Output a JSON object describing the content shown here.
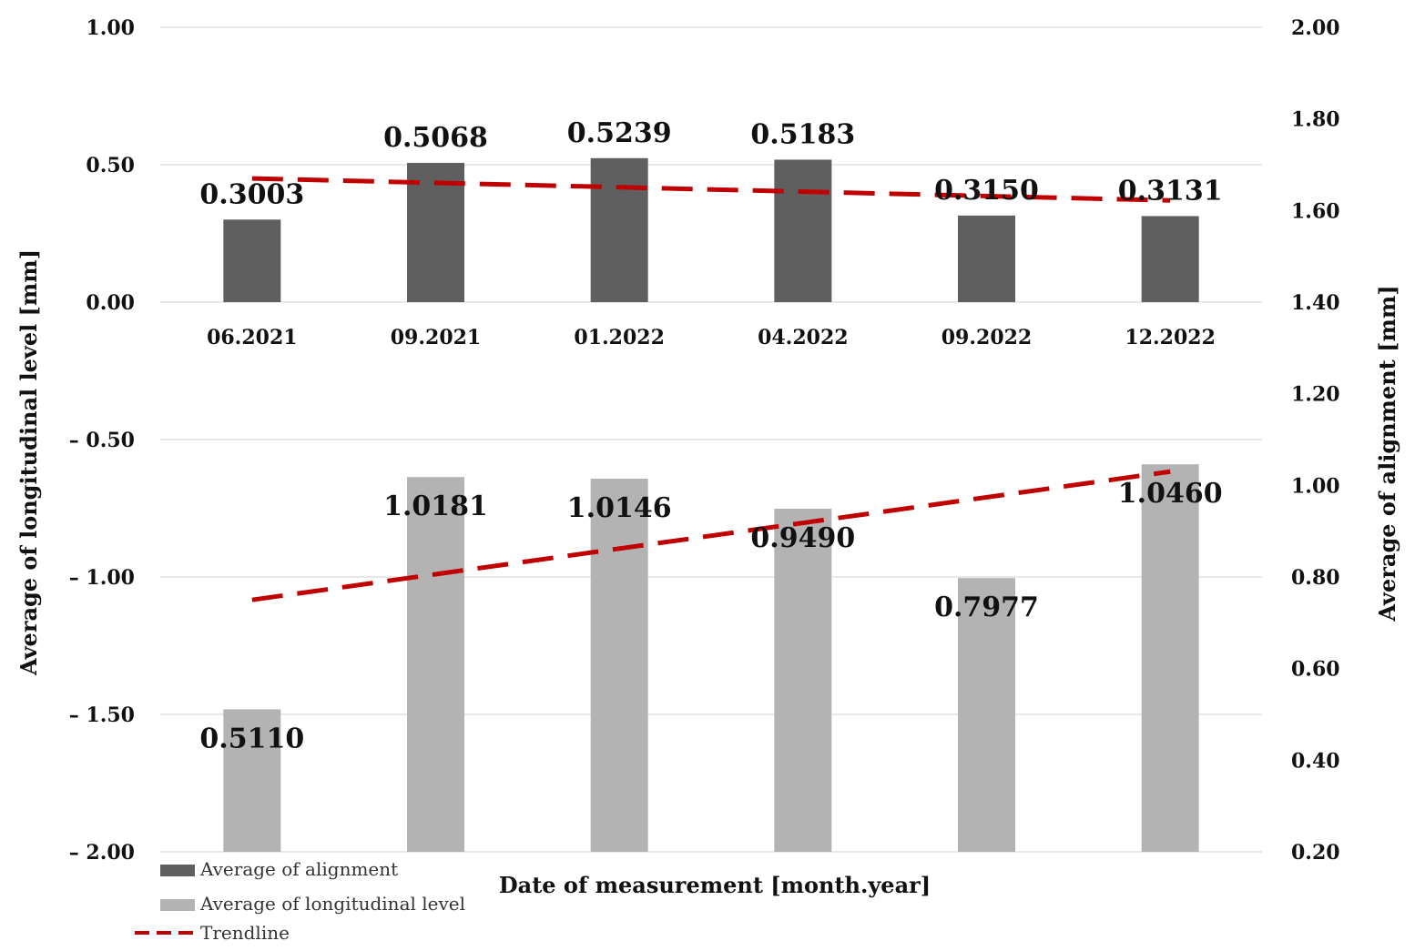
{
  "colors": {
    "alignment_bar": "#5f5f5f",
    "longitudinal_bar": "#b3b3b3",
    "trendline": "#c00000",
    "gridline": "#d9d9d9"
  },
  "chart_data": {
    "type": "bar",
    "title": "",
    "xlabel": "Date of measurement [month.year]",
    "ylabel_left": "Average of longitudinal level [mm]",
    "ylabel_right": "Average of alignment [mm]",
    "categories": [
      "06.2021",
      "09.2021",
      "01.2022",
      "04.2022",
      "09.2022",
      "12.2022"
    ],
    "left_axis": {
      "range": [
        -2.0,
        1.0
      ],
      "ticks": [
        1.0,
        0.5,
        0.0,
        -0.5,
        -1.0,
        -1.5,
        -2.0
      ],
      "tick_labels": [
        "1.00",
        "0.50",
        "0.00",
        "– 0.50",
        "– 1.00",
        "– 1.50",
        "– 2.00"
      ]
    },
    "right_axis": {
      "range": [
        0.2,
        2.0
      ],
      "ticks": [
        2.0,
        1.8,
        1.6,
        1.4,
        1.2,
        1.0,
        0.8,
        0.6,
        0.4,
        0.2
      ],
      "tick_labels": [
        "2.00",
        "1.80",
        "1.60",
        "1.40",
        "1.20",
        "1.00",
        "0.80",
        "0.60",
        "0.40",
        "0.20"
      ]
    },
    "series": [
      {
        "name": "Average of alignment",
        "axis": "left",
        "values": [
          0.3003,
          0.5068,
          0.5239,
          0.5183,
          0.315,
          0.3131
        ],
        "labels": [
          "0.3003",
          "0.5068",
          "0.5239",
          "0.5183",
          "0.3150",
          "0.3131"
        ]
      },
      {
        "name": "Average of longitudinal level",
        "axis": "right",
        "values": [
          0.511,
          1.0181,
          1.0146,
          0.949,
          0.7977,
          1.046
        ],
        "labels": [
          "0.5110",
          "1.0181",
          "1.0146",
          "0.9490",
          "0.7977",
          "1.0460"
        ]
      }
    ],
    "trendlines": [
      {
        "series": "Average of alignment",
        "axis": "left",
        "start": 0.45,
        "end": 0.37
      },
      {
        "series": "Average of longitudinal level",
        "axis": "right",
        "start": 0.75,
        "end": 1.03
      }
    ],
    "legend": {
      "position": "bottom-left",
      "items": [
        {
          "label": "Average of alignment",
          "kind": "bar-dark"
        },
        {
          "label": "Average of longitudinal level",
          "kind": "bar-light"
        },
        {
          "label": "Trendline",
          "kind": "dashed-line"
        }
      ]
    }
  }
}
